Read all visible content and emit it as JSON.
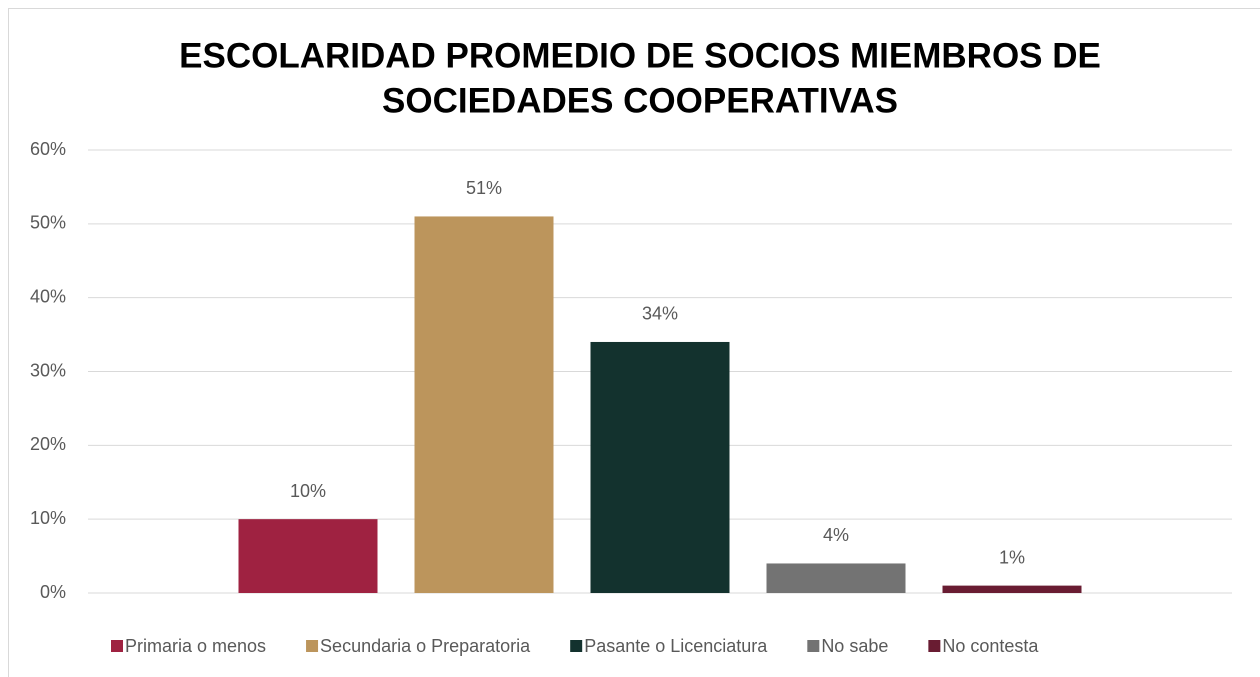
{
  "chart_data": {
    "type": "bar",
    "title": [
      "ESCOLARIDAD PROMEDIO DE SOCIOS MIEMBROS DE",
      "SOCIEDADES COOPERATIVAS"
    ],
    "categories": [
      null
    ],
    "series": [
      {
        "name": "Primaria o menos",
        "color": "#9f2241",
        "values": [
          10
        ],
        "value_labels": [
          "10%"
        ]
      },
      {
        "name": "Secundaria o Preparatoria",
        "color": "#bc955c",
        "values": [
          51
        ],
        "value_labels": [
          "51%"
        ]
      },
      {
        "name": "Pasante o Licenciatura",
        "color": "#13322e",
        "values": [
          34
        ],
        "value_labels": [
          "34%"
        ]
      },
      {
        "name": "No sabe",
        "color": "#737373",
        "values": [
          4
        ],
        "value_labels": [
          "4%"
        ]
      },
      {
        "name": "No contesta",
        "color": "#691c32",
        "values": [
          1
        ],
        "value_labels": [
          "1%"
        ]
      }
    ],
    "ylim": [
      0,
      60
    ],
    "yticks": [
      {
        "value": 0,
        "label": "0%"
      },
      {
        "value": 10,
        "label": "10%"
      },
      {
        "value": 20,
        "label": "20%"
      },
      {
        "value": 30,
        "label": "30%"
      },
      {
        "value": 40,
        "label": "40%"
      },
      {
        "value": 50,
        "label": "50%"
      },
      {
        "value": 60,
        "label": "60%"
      }
    ],
    "grid": true,
    "legend": "bottom"
  }
}
